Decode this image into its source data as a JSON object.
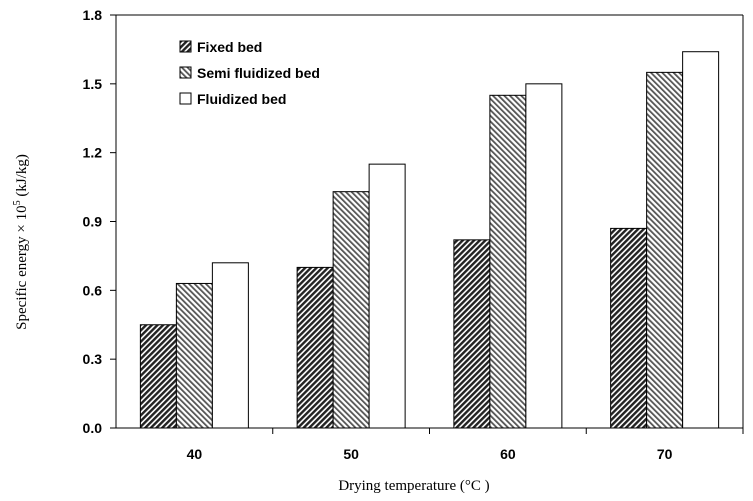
{
  "chart_data": {
    "type": "bar",
    "title": "",
    "xlabel": "Drying temperature (°C )",
    "ylabel_main": "Specific energy × 10",
    "ylabel_sup": "5",
    "ylabel_tail": " (kJ/kg)",
    "categories": [
      "40",
      "50",
      "60",
      "70"
    ],
    "series": [
      {
        "name": "Fixed bed",
        "values": [
          0.45,
          0.7,
          0.82,
          0.87
        ],
        "pattern": "dense-diagonal-dark"
      },
      {
        "name": "Semi fluidized bed",
        "values": [
          0.63,
          1.03,
          1.45,
          1.55
        ],
        "pattern": "diagonal-light"
      },
      {
        "name": "Fluidized bed",
        "values": [
          0.72,
          1.15,
          1.5,
          1.64
        ],
        "pattern": "plain-white"
      }
    ],
    "ylim": [
      0,
      1.8
    ],
    "yticks": [
      "0.0",
      "0.3",
      "0.6",
      "0.9",
      "1.2",
      "1.5",
      "1.8"
    ],
    "grid": false,
    "legend_position": "top-left"
  }
}
